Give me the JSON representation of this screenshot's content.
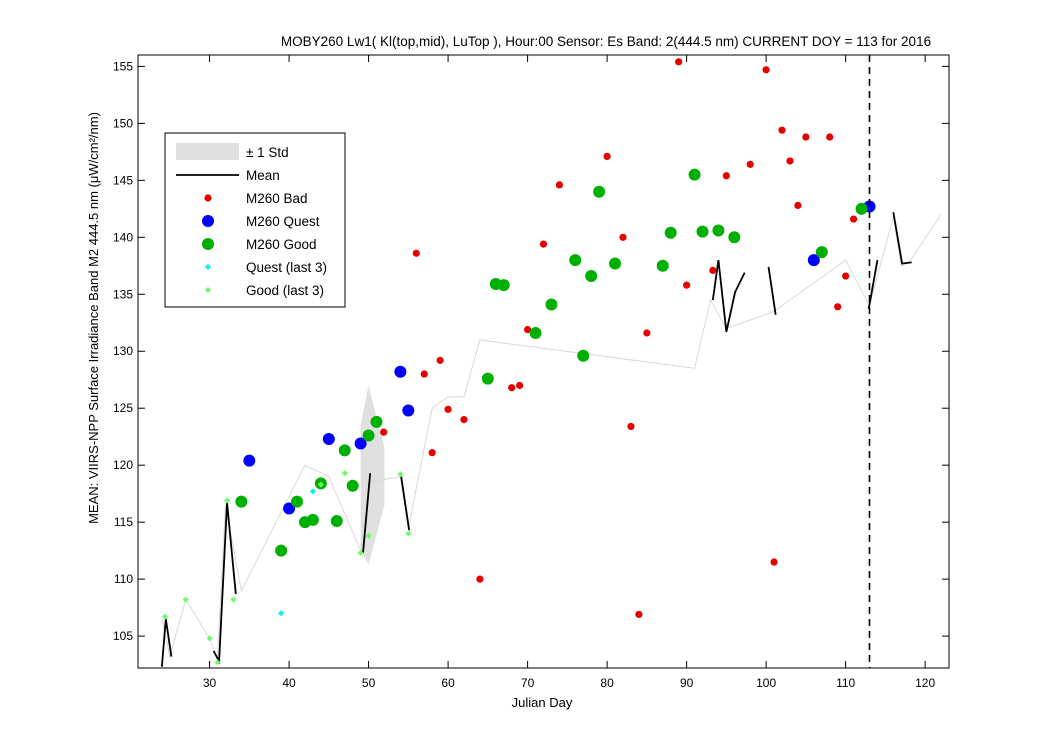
{
  "chart_data": {
    "type": "scatter",
    "title": "MOBY260   Lw1( Kl(top,mid), LuTop ),   Hour:00 Sensor: Es Band: 2(444.5 nm)   CURRENT DOY = 113 for 2016",
    "xlabel": "Julian Day",
    "ylabel": "MEAN: VIIRS-NPP Surface Irradiance Band M2 444.5 nm (μW/cm²/nm)",
    "xlim": [
      21,
      123
    ],
    "ylim": [
      102.2,
      156
    ],
    "xticks": [
      30,
      40,
      50,
      60,
      70,
      80,
      90,
      100,
      110,
      120
    ],
    "yticks": [
      105,
      110,
      115,
      120,
      125,
      130,
      135,
      140,
      145,
      150,
      155
    ],
    "grid": false,
    "legend_position": "top-left",
    "current_doy": 113,
    "colors": {
      "bad": "#e60000",
      "quest": "#0000ff",
      "good": "#00b000",
      "quest_last3": "#00f0f0",
      "good_last3": "#66ff66",
      "std_fill": "#e0e0e0",
      "mean_line": "#000000",
      "trend_line": "#d9d9d9"
    },
    "legend": [
      {
        "key": "std",
        "label": "± 1 Std"
      },
      {
        "key": "mean",
        "label": "Mean"
      },
      {
        "key": "bad",
        "label": "M260 Bad"
      },
      {
        "key": "quest",
        "label": "M260 Quest"
      },
      {
        "key": "good",
        "label": "M260 Good"
      },
      {
        "key": "quest_last3",
        "label": "Quest (last 3)"
      },
      {
        "key": "good_last3",
        "label": "Good (last 3)"
      }
    ],
    "std_band": {
      "upper": [
        [
          49,
          123.5
        ],
        [
          50,
          127.0
        ],
        [
          52,
          121.5
        ]
      ],
      "lower": [
        [
          49,
          112.5
        ],
        [
          50,
          111.3
        ],
        [
          52,
          116.5
        ]
      ]
    },
    "trend_line": [
      [
        24,
        106.5
      ],
      [
        25,
        103.2
      ],
      [
        27,
        108.2
      ],
      [
        30,
        104.8
      ],
      [
        31,
        103.0
      ],
      [
        32,
        116.5
      ],
      [
        34,
        109.0
      ],
      [
        42,
        120.0
      ],
      [
        45,
        119.0
      ],
      [
        49,
        112.5
      ],
      [
        50,
        118.5
      ],
      [
        54,
        119.0
      ],
      [
        55,
        114.5
      ],
      [
        58,
        125.0
      ],
      [
        60,
        126.0
      ],
      [
        62,
        126.0
      ],
      [
        64,
        131.0
      ],
      [
        91,
        128.5
      ],
      [
        93,
        134.5
      ],
      [
        95,
        132.0
      ],
      [
        101,
        133.5
      ],
      [
        110,
        138.0
      ],
      [
        113,
        134.0
      ],
      [
        116,
        141.8
      ],
      [
        117,
        137.5
      ],
      [
        118,
        137.8
      ],
      [
        122,
        142.0
      ]
    ],
    "mean_segments": [
      [
        [
          24,
          102.3
        ],
        [
          24.5,
          106.5
        ],
        [
          25.2,
          103.2
        ]
      ],
      [
        [
          30.5,
          103.7
        ],
        [
          31.2,
          102.8
        ],
        [
          32.2,
          116.7
        ],
        [
          33.3,
          108.7
        ]
      ],
      [
        [
          49.3,
          112.3
        ],
        [
          50.2,
          119.3
        ]
      ],
      [
        [
          54.1,
          119.0
        ],
        [
          55.1,
          114.3
        ]
      ],
      [
        [
          93.3,
          134.5
        ],
        [
          94.0,
          138.0
        ],
        [
          95.0,
          131.7
        ],
        [
          96.1,
          135.2
        ],
        [
          97.3,
          136.9
        ]
      ],
      [
        [
          100.3,
          137.4
        ],
        [
          101.2,
          133.2
        ]
      ],
      [
        [
          112.9,
          133.7
        ],
        [
          114.0,
          138.0
        ]
      ],
      [
        [
          116.0,
          142.2
        ],
        [
          117.1,
          137.7
        ],
        [
          118.3,
          137.8
        ]
      ]
    ],
    "series": [
      {
        "name": "M260 Bad",
        "key": "bad",
        "points": [
          [
            56,
            138.6
          ],
          [
            57,
            128.0
          ],
          [
            58,
            121.1
          ],
          [
            59,
            129.2
          ],
          [
            60,
            124.9
          ],
          [
            62,
            124.0
          ],
          [
            51.9,
            122.9
          ],
          [
            64,
            110.0
          ],
          [
            68,
            126.8
          ],
          [
            69,
            127.0
          ],
          [
            70,
            131.9
          ],
          [
            72,
            139.4
          ],
          [
            74,
            144.6
          ],
          [
            80,
            147.1
          ],
          [
            82,
            140.0
          ],
          [
            83,
            123.4
          ],
          [
            84,
            106.9
          ],
          [
            85,
            131.6
          ],
          [
            89,
            155.4
          ],
          [
            90,
            135.8
          ],
          [
            93.3,
            137.1
          ],
          [
            95,
            145.4
          ],
          [
            98,
            146.4
          ],
          [
            100,
            154.7
          ],
          [
            101,
            111.5
          ],
          [
            102,
            149.4
          ],
          [
            103,
            146.7
          ],
          [
            104,
            142.8
          ],
          [
            105,
            148.8
          ],
          [
            108,
            148.8
          ],
          [
            109,
            133.9
          ],
          [
            110,
            136.6
          ],
          [
            111,
            141.6
          ]
        ]
      },
      {
        "name": "M260 Quest",
        "key": "quest",
        "points": [
          [
            35,
            120.4
          ],
          [
            40,
            116.2
          ],
          [
            45,
            122.3
          ],
          [
            49,
            121.9
          ],
          [
            54,
            128.2
          ],
          [
            55,
            124.8
          ],
          [
            106,
            138.0
          ],
          [
            113,
            142.7
          ]
        ]
      },
      {
        "name": "M260 Good",
        "key": "good",
        "points": [
          [
            34,
            116.8
          ],
          [
            39,
            112.5
          ],
          [
            41,
            116.8
          ],
          [
            42,
            115.0
          ],
          [
            43,
            115.2
          ],
          [
            44,
            118.4
          ],
          [
            46,
            115.1
          ],
          [
            47,
            121.3
          ],
          [
            48,
            118.2
          ],
          [
            50,
            122.6
          ],
          [
            51,
            123.8
          ],
          [
            65,
            127.6
          ],
          [
            66,
            135.9
          ],
          [
            67,
            135.8
          ],
          [
            71,
            131.6
          ],
          [
            73,
            134.1
          ],
          [
            76,
            138.0
          ],
          [
            77,
            129.6
          ],
          [
            78,
            136.6
          ],
          [
            79,
            144.0
          ],
          [
            81,
            137.7
          ],
          [
            87,
            137.5
          ],
          [
            88,
            140.4
          ],
          [
            91,
            145.5
          ],
          [
            92,
            140.5
          ],
          [
            94,
            140.6
          ],
          [
            96,
            140.0
          ],
          [
            107,
            138.7
          ],
          [
            112,
            142.5
          ]
        ]
      },
      {
        "name": "Quest (last 3)",
        "key": "quest_last3",
        "points": [
          [
            39,
            107.0
          ],
          [
            43,
            117.7
          ]
        ]
      },
      {
        "name": "Good (last 3)",
        "key": "good_last3",
        "points": [
          [
            24.4,
            106.7
          ],
          [
            27,
            108.2
          ],
          [
            30,
            104.8
          ],
          [
            31,
            102.7
          ],
          [
            32.2,
            116.9
          ],
          [
            33,
            108.2
          ],
          [
            44,
            118.3
          ],
          [
            47,
            119.3
          ],
          [
            49,
            112.3
          ],
          [
            50,
            113.8
          ],
          [
            54,
            119.2
          ],
          [
            55,
            114.0
          ]
        ]
      }
    ]
  }
}
